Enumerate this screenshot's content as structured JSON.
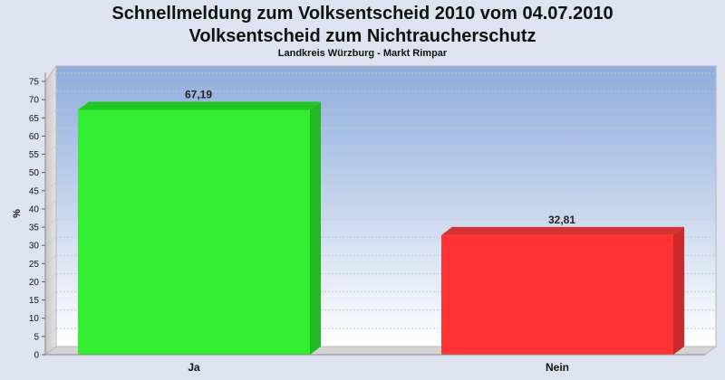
{
  "title_line1": "Schnellmeldung zum Volksentscheid 2010 vom 04.07.2010",
  "title_line2": "Volksentscheid zum Nichtraucherschutz",
  "subtitle": "Landkreis Würzburg - Markt Rimpar",
  "chart_data": {
    "type": "bar",
    "categories": [
      "Ja",
      "Nein"
    ],
    "values": [
      67.19,
      32.81
    ],
    "value_labels": [
      "67,19",
      "32,81"
    ],
    "colors": [
      "#33ee33",
      "#ff3333"
    ],
    "ylabel": "%",
    "xlabel": "",
    "ylim": [
      0,
      75
    ],
    "yticks": [
      0,
      5,
      10,
      15,
      20,
      25,
      30,
      35,
      40,
      45,
      50,
      55,
      60,
      65,
      70,
      75
    ],
    "grid": true,
    "legend": "none"
  }
}
